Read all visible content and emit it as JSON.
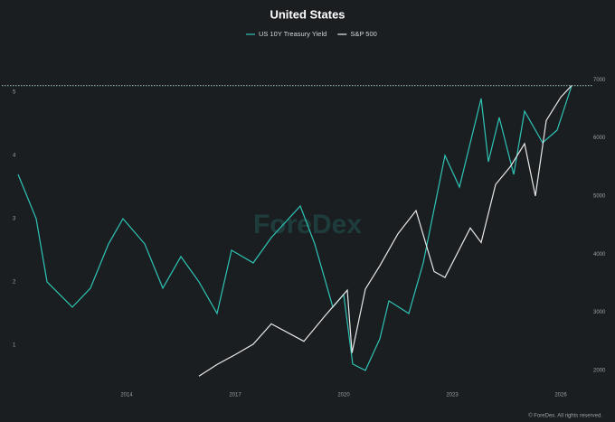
{
  "chart_data": {
    "type": "line",
    "title": "United States",
    "watermark": "ForeDex",
    "copyright": "© ForeDex. All rights reserved.",
    "xlim": [
      2011.05,
      2026.75
    ],
    "xticks": [
      2014,
      2017,
      2020,
      2023,
      2026
    ],
    "ylim": [
      0.27,
      5.6
    ],
    "yticks": [
      1,
      2,
      3,
      4,
      5
    ],
    "y2lim": [
      1640,
      7440
    ],
    "y2ticks": [
      2000,
      3000,
      4000,
      5000,
      6000,
      7000
    ],
    "series": [
      {
        "name": "US 10Y Treasury Yield",
        "color": "#2ec4b6",
        "x": [
          2011.0,
          2011.5,
          2011.8,
          2012.5,
          2013.0,
          2013.5,
          2013.9,
          2014.5,
          2015.0,
          2015.5,
          2016.0,
          2016.5,
          2016.9,
          2017.5,
          2018.0,
          2018.8,
          2019.2,
          2019.7,
          2020.0,
          2020.25,
          2020.6,
          2021.0,
          2021.25,
          2021.8,
          2022.2,
          2022.8,
          2023.2,
          2023.8,
          2024.0,
          2024.3,
          2024.7,
          2025.0,
          2025.5,
          2025.9,
          2026.3
        ],
        "values": [
          3.7,
          3.0,
          2.0,
          1.6,
          1.9,
          2.6,
          3.0,
          2.6,
          1.9,
          2.4,
          2.0,
          1.5,
          2.5,
          2.3,
          2.7,
          3.2,
          2.6,
          1.6,
          1.8,
          0.7,
          0.6,
          1.1,
          1.7,
          1.5,
          2.3,
          4.0,
          3.5,
          4.9,
          3.9,
          4.6,
          3.7,
          4.7,
          4.2,
          4.4,
          5.1
        ]
      },
      {
        "name": "S&P 500",
        "color": "#e8e8e8",
        "axis": "y2",
        "x": [
          2016.0,
          2016.5,
          2017.0,
          2017.5,
          2018.0,
          2018.9,
          2019.5,
          2020.1,
          2020.23,
          2020.6,
          2021.0,
          2021.5,
          2022.0,
          2022.5,
          2022.8,
          2023.5,
          2023.8,
          2024.2,
          2024.6,
          2025.0,
          2025.3,
          2025.6,
          2026.0,
          2026.3
        ],
        "values": [
          1900,
          2100,
          2270,
          2450,
          2800,
          2500,
          2950,
          3380,
          2300,
          3400,
          3800,
          4350,
          4750,
          3700,
          3600,
          4450,
          4200,
          5200,
          5500,
          5900,
          5000,
          6300,
          6700,
          6900
        ]
      }
    ]
  }
}
